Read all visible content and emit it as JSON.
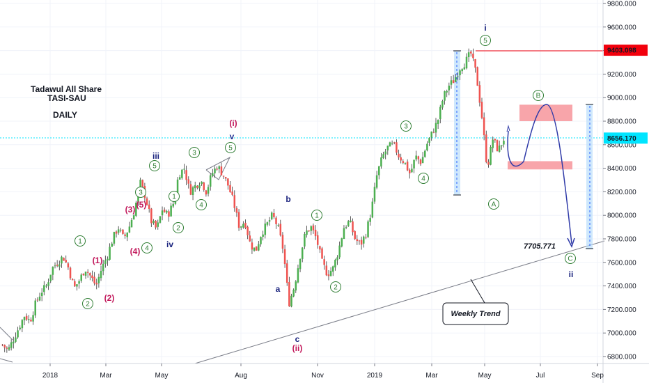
{
  "chart_data": {
    "type": "candlestick",
    "title_lines": [
      "Tadawul All Share",
      "TASI-SAU",
      "DAILY"
    ],
    "x_ticks": [
      "2018",
      "Mar",
      "May",
      "Aug",
      "Nov",
      "2019",
      "Mar",
      "May",
      "Jul",
      "Sep"
    ],
    "y_ticks": [
      "9800.000",
      "9600.000",
      "9400.000",
      "9200.000",
      "9000.000",
      "8800.000",
      "8600.000",
      "8400.000",
      "8200.000",
      "8000.000",
      "7800.000",
      "7600.000",
      "7400.000",
      "7200.000",
      "7000.000",
      "6800.000"
    ],
    "ylim": [
      6780,
      9820
    ],
    "price_labels": [
      {
        "text": "9403.098",
        "value": 9403.098,
        "color": "#f2000c"
      },
      {
        "text": "8656.170",
        "value": 8656.17,
        "color": "#00e5ff"
      }
    ],
    "price_path": [
      [
        0,
        6900
      ],
      [
        1,
        6850
      ],
      [
        2,
        6950
      ],
      [
        3,
        7050
      ],
      [
        4,
        7150
      ],
      [
        5,
        7100
      ],
      [
        6,
        7250
      ],
      [
        7,
        7350
      ],
      [
        8,
        7400
      ],
      [
        9,
        7550
      ],
      [
        10,
        7600
      ],
      [
        11,
        7650
      ],
      [
        12,
        7550
      ],
      [
        13,
        7380
      ],
      [
        14,
        7450
      ],
      [
        15,
        7550
      ],
      [
        16,
        7480
      ],
      [
        17,
        7400
      ],
      [
        18,
        7550
      ],
      [
        19,
        7650
      ],
      [
        20,
        7800
      ],
      [
        21,
        7900
      ],
      [
        22,
        7800
      ],
      [
        23,
        7900
      ],
      [
        24,
        8050
      ],
      [
        25,
        8280
      ],
      [
        26,
        8150
      ],
      [
        27,
        7950
      ],
      [
        28,
        7880
      ],
      [
        29,
        8050
      ],
      [
        30,
        8000
      ],
      [
        31,
        8100
      ],
      [
        32,
        8350
      ],
      [
        33,
        8400
      ],
      [
        34,
        8200
      ],
      [
        35,
        8250
      ],
      [
        36,
        8300
      ],
      [
        37,
        8200
      ],
      [
        38,
        8350
      ],
      [
        39,
        8420
      ],
      [
        40,
        8350
      ],
      [
        41,
        8250
      ],
      [
        42,
        8100
      ],
      [
        43,
        7900
      ],
      [
        44,
        7950
      ],
      [
        45,
        7750
      ],
      [
        46,
        7700
      ],
      [
        47,
        7850
      ],
      [
        48,
        7920
      ],
      [
        49,
        8000
      ],
      [
        50,
        7900
      ],
      [
        51,
        7700
      ],
      [
        52,
        7250
      ],
      [
        53,
        7400
      ],
      [
        54,
        7650
      ],
      [
        55,
        7850
      ],
      [
        56,
        7900
      ],
      [
        57,
        7800
      ],
      [
        58,
        7600
      ],
      [
        59,
        7500
      ],
      [
        60,
        7550
      ],
      [
        61,
        7700
      ],
      [
        62,
        7900
      ],
      [
        63,
        7950
      ],
      [
        64,
        7800
      ],
      [
        65,
        7750
      ],
      [
        66,
        7850
      ],
      [
        67,
        8050
      ],
      [
        68,
        8350
      ],
      [
        69,
        8500
      ],
      [
        70,
        8580
      ],
      [
        71,
        8600
      ],
      [
        72,
        8500
      ],
      [
        73,
        8450
      ],
      [
        74,
        8350
      ],
      [
        75,
        8500
      ],
      [
        76,
        8450
      ],
      [
        77,
        8600
      ],
      [
        78,
        8700
      ],
      [
        79,
        8800
      ],
      [
        80,
        9000
      ],
      [
        81,
        9100
      ],
      [
        82,
        9150
      ],
      [
        83,
        9250
      ],
      [
        84,
        9300
      ],
      [
        85,
        9380
      ],
      [
        86,
        9200
      ],
      [
        87,
        8850
      ],
      [
        88,
        8400
      ],
      [
        89,
        8650
      ],
      [
        90,
        8550
      ],
      [
        91,
        8650
      ]
    ],
    "wave_labels": [
      {
        "text": "i",
        "style": "plain",
        "color": "#1a237e"
      },
      {
        "text": "5",
        "style": "circle",
        "color": "#2e7d32"
      },
      {
        "text": "(i)",
        "style": "plain",
        "color": "#c2185b"
      },
      {
        "text": "v",
        "style": "plain",
        "color": "#283593"
      },
      {
        "text": "5",
        "style": "circle",
        "color": "#2e7d32"
      },
      {
        "text": "iii",
        "style": "plain",
        "color": "#1a237e"
      },
      {
        "text": "5",
        "style": "circle",
        "color": "#2e7d32"
      },
      {
        "text": "3",
        "style": "circle",
        "color": "#2e7d32"
      },
      {
        "text": "3",
        "style": "circle",
        "color": "#2e7d32"
      },
      {
        "text": "(3)",
        "style": "plain",
        "color": "#c2185b"
      },
      {
        "text": "(5)",
        "style": "plain",
        "color": "#c2185b"
      },
      {
        "text": "1",
        "style": "circle",
        "color": "#2e7d32"
      },
      {
        "text": "4",
        "style": "circle",
        "color": "#2e7d32"
      },
      {
        "text": "2",
        "style": "circle",
        "color": "#2e7d32"
      },
      {
        "text": "(4)",
        "style": "plain",
        "color": "#c2185b"
      },
      {
        "text": "4",
        "style": "circle",
        "color": "#2e7d32"
      },
      {
        "text": "iv",
        "style": "plain",
        "color": "#1a237e"
      },
      {
        "text": "1",
        "style": "circle",
        "color": "#2e7d32"
      },
      {
        "text": "(1)",
        "style": "plain",
        "color": "#c2185b"
      },
      {
        "text": "2",
        "style": "circle",
        "color": "#2e7d32"
      },
      {
        "text": "(2)",
        "style": "plain",
        "color": "#c2185b"
      },
      {
        "text": "b",
        "style": "plain",
        "color": "#1a237e"
      },
      {
        "text": "a",
        "style": "plain",
        "color": "#1a237e"
      },
      {
        "text": "c",
        "style": "plain",
        "color": "#1a237e"
      },
      {
        "text": "(ii)",
        "style": "plain",
        "color": "#c2185b"
      },
      {
        "text": "1",
        "style": "circle",
        "color": "#2e7d32"
      },
      {
        "text": "2",
        "style": "circle",
        "color": "#2e7d32"
      },
      {
        "text": "3",
        "style": "circle",
        "color": "#2e7d32"
      },
      {
        "text": "4",
        "style": "circle",
        "color": "#2e7d32"
      },
      {
        "text": "A",
        "style": "circle",
        "color": "#2e7d32"
      },
      {
        "text": "B",
        "style": "circle",
        "color": "#2e7d32"
      },
      {
        "text": "C",
        "style": "circle",
        "color": "#2e7d32"
      },
      {
        "text": "ii",
        "style": "plain",
        "color": "#1a237e"
      }
    ],
    "target_label": "7705.771",
    "trend_label": "Weekly Trend",
    "zones": [
      {
        "low": 8800,
        "high": 8940,
        "color": "#f8a5aa"
      },
      {
        "low": 8390,
        "high": 8460,
        "color": "#f8a5aa"
      }
    ],
    "colors": {
      "up": "#4caf50",
      "down": "#ef5350",
      "projection": "#2f3aa8"
    }
  }
}
